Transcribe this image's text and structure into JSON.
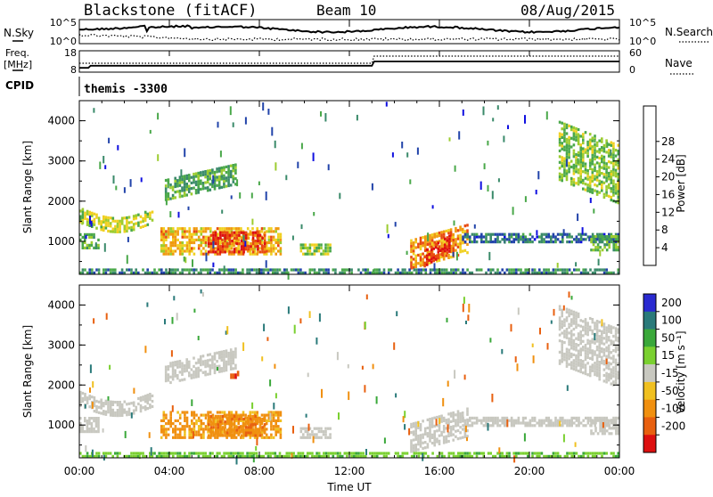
{
  "header": {
    "station": "Blackstone (fitACF)",
    "beam": "Beam 10",
    "date": "08/Aug/2015"
  },
  "summary_panels": {
    "nsky_label": "N.Sky",
    "nsky_ticks": [
      "10^5",
      "10^0"
    ],
    "nsearch_label": "N.Search",
    "freq_label_line1": "Freq.",
    "freq_label_line2": "[MHz]",
    "freq_ticks": [
      "18",
      "8"
    ],
    "nave_label": "Nave",
    "nave_ticks": [
      "60",
      "0"
    ],
    "cpid_label": "CPID",
    "cpid_value": "themis -3300",
    "freq_series": {
      "x_hours": [
        0,
        0.4,
        0.5,
        13.0,
        13.1,
        24
      ],
      "values_mhz": [
        10,
        10,
        11,
        11,
        13,
        13
      ]
    },
    "nave_series": {
      "x_hours": [
        0,
        13.0,
        13.1,
        24
      ],
      "values": [
        25,
        25,
        45,
        45
      ]
    }
  },
  "chart_data": [
    {
      "type": "heatmap",
      "title": "",
      "ylabel": "Slant Range [km]",
      "xlabel": "",
      "ylim": [
        180,
        4500
      ],
      "yticks": [
        "1000",
        "2000",
        "3000",
        "4000"
      ],
      "xlim_hours": [
        0,
        24
      ],
      "colorbar_label": "Power [dB]",
      "colorbar_ticks": [
        "4",
        "8",
        "12",
        "16",
        "20",
        "24",
        "28"
      ],
      "colorbar_range": [
        0,
        30
      ],
      "colors": [
        "#1010e0",
        "#2244aa",
        "#3a8a6a",
        "#4aa84a",
        "#9ccc30",
        "#f0d020",
        "#f09a10",
        "#e84a10",
        "#dd1010"
      ],
      "echo_regions": [
        {
          "t0": 0.0,
          "t1": 3.3,
          "r0": 1450,
          "r1": 1850,
          "power": 16,
          "curve": "dip"
        },
        {
          "t0": 0.0,
          "t1": 0.9,
          "r0": 800,
          "r1": 1200,
          "power": 12,
          "curve": "flat"
        },
        {
          "t0": 3.6,
          "t1": 9.0,
          "r0": 650,
          "r1": 1350,
          "power": 20,
          "curve": "flat"
        },
        {
          "t0": 5.7,
          "t1": 8.3,
          "r0": 700,
          "r1": 1250,
          "power": 26,
          "curve": "flat"
        },
        {
          "t0": 3.8,
          "t1": 7.0,
          "r0": 2000,
          "r1": 2550,
          "power": 11,
          "curve": "rise"
        },
        {
          "t0": 9.8,
          "t1": 11.2,
          "r0": 650,
          "r1": 950,
          "power": 14,
          "curve": "flat"
        },
        {
          "t0": 14.7,
          "t1": 17.3,
          "r0": 300,
          "r1": 1050,
          "power": 22,
          "curve": "rise"
        },
        {
          "t0": 15.3,
          "t1": 16.5,
          "r0": 350,
          "r1": 800,
          "power": 28,
          "curve": "rise"
        },
        {
          "t0": 17.0,
          "t1": 24.0,
          "r0": 950,
          "r1": 1200,
          "power": 7,
          "curve": "flat"
        },
        {
          "t0": 21.3,
          "t1": 24.0,
          "r0": 1900,
          "r1": 3400,
          "power": 14,
          "curve": "fall"
        },
        {
          "t0": 22.7,
          "t1": 24.0,
          "r0": 750,
          "r1": 1150,
          "power": 12,
          "curve": "flat"
        },
        {
          "t0": 0.0,
          "t1": 24.0,
          "r0": 180,
          "r1": 330,
          "power": 9,
          "curve": "flat"
        }
      ]
    },
    {
      "type": "heatmap",
      "title": "",
      "ylabel": "Slant Range [km]",
      "xlabel": "Time UT",
      "ylim": [
        180,
        4500
      ],
      "yticks": [
        "1000",
        "2000",
        "3000",
        "4000"
      ],
      "xticks": [
        "00:00",
        "04:00",
        "08:00",
        "12:00",
        "16:00",
        "20:00",
        "00:00"
      ],
      "xlim_hours": [
        0,
        24
      ],
      "colorbar_label": "Velocity [m s⁻¹]",
      "colorbar_ticks": [
        "200",
        "100",
        "50",
        "15",
        "-15",
        "-50",
        "-100",
        "-200"
      ],
      "colorbar_range": [
        -250,
        250
      ],
      "colors": [
        "#2a2ad0",
        "#2a7a7a",
        "#3aa83a",
        "#7ad030",
        "#c8c8c0",
        "#f0c020",
        "#f09010",
        "#e86010",
        "#dd1010"
      ],
      "ground_scatter_color": "#c8c8c0",
      "echo_regions": [
        {
          "t0": 0.0,
          "t1": 3.3,
          "r0": 1450,
          "r1": 1850,
          "velocity": 0,
          "curve": "dip"
        },
        {
          "t0": 0.0,
          "t1": 0.9,
          "r0": 800,
          "r1": 1200,
          "velocity": 0,
          "curve": "flat"
        },
        {
          "t0": 3.6,
          "t1": 9.0,
          "r0": 650,
          "r1": 1350,
          "velocity": -60,
          "curve": "flat"
        },
        {
          "t0": 5.7,
          "t1": 8.3,
          "r0": 700,
          "r1": 1250,
          "velocity": -90,
          "curve": "flat"
        },
        {
          "t0": 3.8,
          "t1": 7.0,
          "r0": 2000,
          "r1": 2550,
          "velocity": 0,
          "curve": "rise"
        },
        {
          "t0": 6.7,
          "t1": 7.1,
          "r0": 2150,
          "r1": 2350,
          "velocity": -200,
          "curve": "flat"
        },
        {
          "t0": 9.8,
          "t1": 11.2,
          "r0": 650,
          "r1": 950,
          "velocity": 0,
          "curve": "flat"
        },
        {
          "t0": 14.7,
          "t1": 17.3,
          "r0": 300,
          "r1": 1050,
          "velocity": 0,
          "curve": "rise"
        },
        {
          "t0": 17.0,
          "t1": 24.0,
          "r0": 950,
          "r1": 1200,
          "velocity": 0,
          "curve": "flat"
        },
        {
          "t0": 21.3,
          "t1": 24.0,
          "r0": 1900,
          "r1": 3400,
          "velocity": 0,
          "curve": "fall"
        },
        {
          "t0": 22.7,
          "t1": 24.0,
          "r0": 750,
          "r1": 1150,
          "velocity": 0,
          "curve": "flat"
        },
        {
          "t0": 0.0,
          "t1": 24.0,
          "r0": 180,
          "r1": 330,
          "velocity": 40,
          "curve": "flat"
        }
      ]
    }
  ]
}
